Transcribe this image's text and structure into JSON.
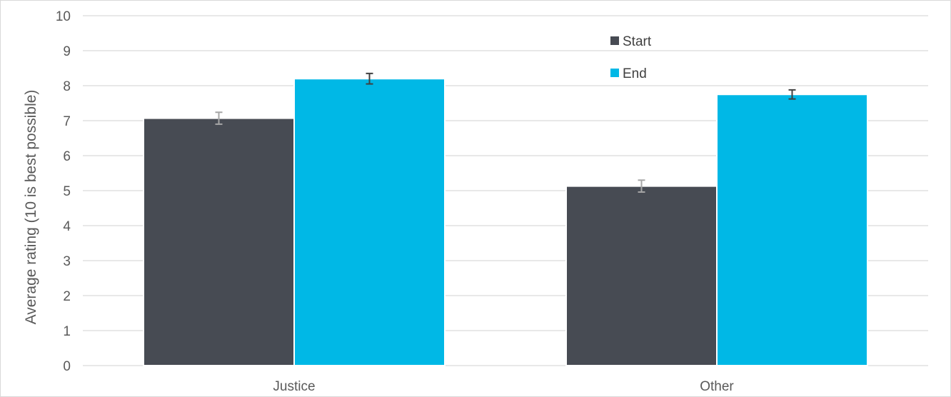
{
  "chart_data": {
    "type": "bar",
    "title": "",
    "xlabel": "",
    "ylabel": "Average rating (10 is best possible)",
    "ylim": [
      0,
      10
    ],
    "yticks": [
      0,
      1,
      2,
      3,
      4,
      5,
      6,
      7,
      8,
      9,
      10
    ],
    "categories": [
      "Justice",
      "Other"
    ],
    "series": [
      {
        "name": "Start",
        "values": [
          7.07,
          5.13
        ],
        "errors": [
          0.17,
          0.17
        ],
        "color": "#474b53"
      },
      {
        "name": "End",
        "values": [
          8.2,
          7.75
        ],
        "errors": [
          0.15,
          0.13
        ],
        "color": "#00b8e6"
      }
    ],
    "grid": true,
    "legend_position": "top-center"
  },
  "colors": {
    "grid": "#d9d9d9",
    "text": "#595959",
    "error_bar_start": "#a6a6a6",
    "error_bar_end": "#404040"
  }
}
